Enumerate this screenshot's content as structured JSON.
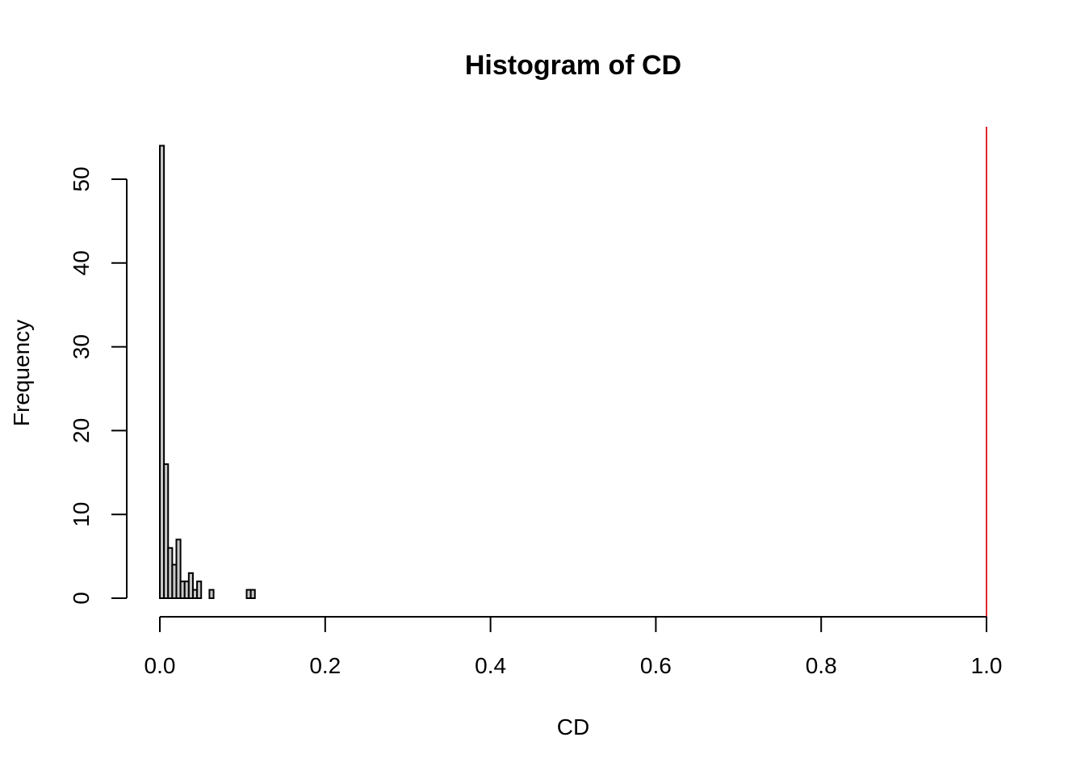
{
  "chart_data": {
    "type": "bar",
    "title": "Histogram of CD",
    "xlabel": "CD",
    "ylabel": "Frequency",
    "xlim": [
      0.0,
      1.0
    ],
    "ylim": [
      0,
      55
    ],
    "bin_width": 0.005,
    "x_ticks": [
      {
        "value": 0.0,
        "label": "0.0"
      },
      {
        "value": 0.2,
        "label": "0.2"
      },
      {
        "value": 0.4,
        "label": "0.4"
      },
      {
        "value": 0.6,
        "label": "0.6"
      },
      {
        "value": 0.8,
        "label": "0.8"
      },
      {
        "value": 1.0,
        "label": "1.0"
      }
    ],
    "y_ticks": [
      {
        "value": 0,
        "label": "0"
      },
      {
        "value": 10,
        "label": "10"
      },
      {
        "value": 20,
        "label": "20"
      },
      {
        "value": 30,
        "label": "30"
      },
      {
        "value": 40,
        "label": "40"
      },
      {
        "value": 50,
        "label": "50"
      }
    ],
    "bins": [
      {
        "x0": 0.0,
        "x1": 0.005,
        "count": 54
      },
      {
        "x0": 0.005,
        "x1": 0.01,
        "count": 16
      },
      {
        "x0": 0.01,
        "x1": 0.015,
        "count": 6
      },
      {
        "x0": 0.015,
        "x1": 0.02,
        "count": 4
      },
      {
        "x0": 0.02,
        "x1": 0.025,
        "count": 7
      },
      {
        "x0": 0.025,
        "x1": 0.03,
        "count": 2
      },
      {
        "x0": 0.03,
        "x1": 0.035,
        "count": 2
      },
      {
        "x0": 0.035,
        "x1": 0.04,
        "count": 3
      },
      {
        "x0": 0.04,
        "x1": 0.045,
        "count": 1
      },
      {
        "x0": 0.045,
        "x1": 0.05,
        "count": 2
      },
      {
        "x0": 0.05,
        "x1": 0.055,
        "count": 0
      },
      {
        "x0": 0.055,
        "x1": 0.06,
        "count": 0
      },
      {
        "x0": 0.06,
        "x1": 0.065,
        "count": 1
      },
      {
        "x0": 0.065,
        "x1": 0.07,
        "count": 0
      },
      {
        "x0": 0.07,
        "x1": 0.075,
        "count": 0
      },
      {
        "x0": 0.075,
        "x1": 0.08,
        "count": 0
      },
      {
        "x0": 0.08,
        "x1": 0.085,
        "count": 0
      },
      {
        "x0": 0.085,
        "x1": 0.09,
        "count": 0
      },
      {
        "x0": 0.09,
        "x1": 0.095,
        "count": 0
      },
      {
        "x0": 0.095,
        "x1": 0.1,
        "count": 0
      },
      {
        "x0": 0.1,
        "x1": 0.105,
        "count": 0
      },
      {
        "x0": 0.105,
        "x1": 0.11,
        "count": 1
      },
      {
        "x0": 0.11,
        "x1": 0.115,
        "count": 1
      }
    ],
    "reference_line": {
      "x": 1.0,
      "color": "#e3262e"
    },
    "bar_fill": "#c8c8c8",
    "grid": false,
    "legend": "none"
  }
}
